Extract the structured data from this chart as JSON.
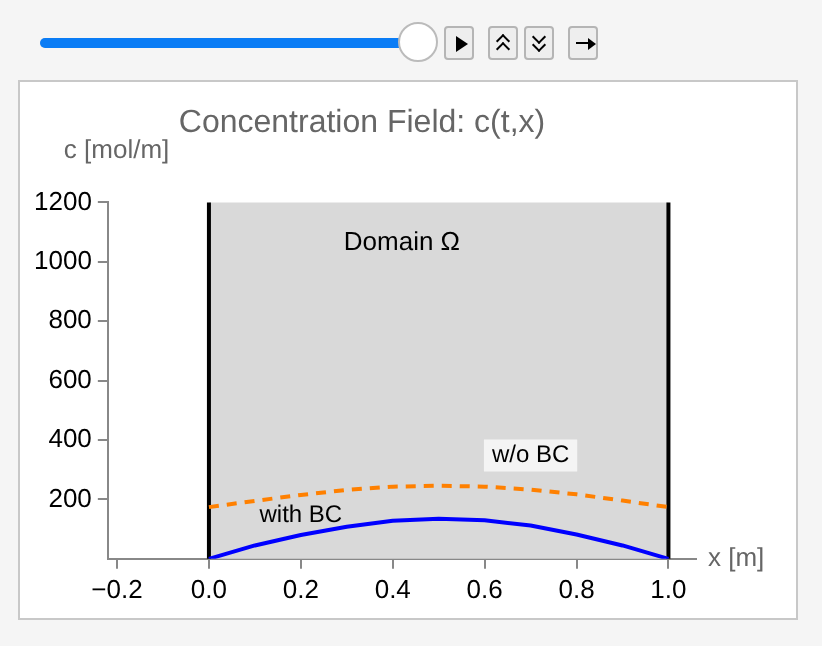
{
  "chart_data": {
    "type": "line",
    "title": "Concentration Field: c(t,x)",
    "xlabel": "x [m]",
    "ylabel": "c [mol/m]",
    "xlim": [
      -0.22,
      1.06
    ],
    "ylim": [
      0,
      1200
    ],
    "xticks": [
      {
        "value": -0.2,
        "label": "−0.2"
      },
      {
        "value": 0,
        "label": "0.0"
      },
      {
        "value": 0.2,
        "label": "0.2"
      },
      {
        "value": 0.4,
        "label": "0.4"
      },
      {
        "value": 0.6,
        "label": "0.6"
      },
      {
        "value": 0.8,
        "label": "0.8"
      },
      {
        "value": 1,
        "label": "1.0"
      }
    ],
    "yticks": [
      200,
      400,
      600,
      800,
      1000,
      1200
    ],
    "grid": false,
    "legend": false,
    "x": [
      0,
      0.1,
      0.2,
      0.3,
      0.4,
      0.5,
      0.6,
      0.7,
      0.8,
      0.9,
      1.0
    ],
    "series": [
      {
        "name": "with BC",
        "color": "#0000ff",
        "line_style": "solid",
        "values": [
          0,
          45,
          80,
          108,
          128,
          135,
          130,
          112,
          82,
          45,
          0
        ]
      },
      {
        "name": "w/o BC",
        "color": "#ff8000",
        "line_style": "dashed",
        "values": [
          174,
          195,
          215,
          232,
          243,
          246,
          243,
          233,
          217,
          196,
          174
        ]
      }
    ],
    "bands": [
      {
        "axis": "x",
        "from": 0,
        "to": 1,
        "color": "#d9d9d9"
      }
    ],
    "ref_lines": [
      {
        "axis": "x",
        "value": 0,
        "color": "#000000"
      },
      {
        "axis": "x",
        "value": 1,
        "color": "#000000"
      }
    ],
    "annotations": [
      "Domain Ω"
    ]
  }
}
